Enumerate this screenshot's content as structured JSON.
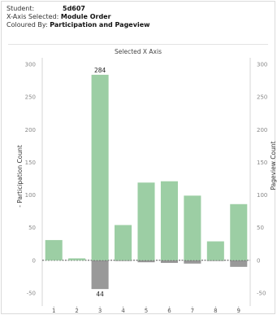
{
  "header": {
    "student_label": "Student:",
    "student_value": "5d607",
    "xaxis_label": "X-Axis Selected:",
    "xaxis_value": "Module Order",
    "colour_label": "Coloured By:",
    "colour_value": "Participation and Pageview"
  },
  "chart_data": {
    "type": "bar",
    "title": "Selected X Axis",
    "xlabel": "",
    "ylabel_left": "- Participation Count",
    "ylabel_right": "Pageview Count",
    "categories": [
      "1",
      "2",
      "3",
      "4",
      "5",
      "6",
      "7",
      "8",
      "9"
    ],
    "series": [
      {
        "name": "Participation",
        "color": "#9ccea4",
        "values": [
          31,
          3,
          284,
          54,
          119,
          121,
          99,
          29,
          86
        ]
      },
      {
        "name": "Pageview",
        "color": "#999999",
        "values": [
          0,
          0,
          -44,
          -1,
          -3,
          -4,
          -5,
          -1,
          -10
        ]
      }
    ],
    "data_labels": [
      {
        "category": "3",
        "series": "Participation",
        "text": "284"
      },
      {
        "category": "3",
        "series": "Pageview",
        "text": "44"
      }
    ],
    "ylim": [
      -70,
      310
    ],
    "yticks": [
      300,
      250,
      200,
      150,
      100,
      50,
      0,
      -50
    ],
    "grid": false,
    "legend": "none"
  }
}
